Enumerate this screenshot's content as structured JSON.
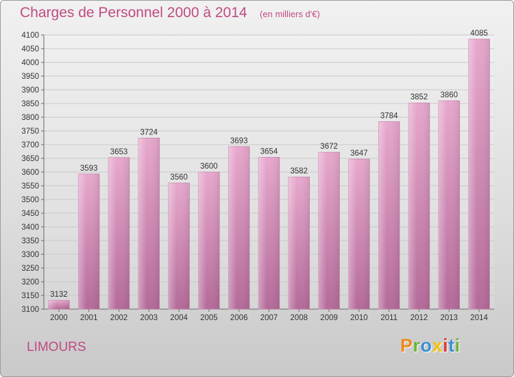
{
  "chart_data": {
    "type": "bar",
    "title": "Charges de Personnel 2000 à 2014",
    "subtitle": "(en milliers d'€)",
    "categories": [
      "2000",
      "2001",
      "2002",
      "2003",
      "2004",
      "2005",
      "2006",
      "2007",
      "2008",
      "2009",
      "2010",
      "2011",
      "2012",
      "2013",
      "2014"
    ],
    "values": [
      3132,
      3593,
      3653,
      3724,
      3560,
      3600,
      3693,
      3654,
      3582,
      3672,
      3647,
      3784,
      3852,
      3860,
      4085
    ],
    "ylim": [
      3100,
      4100
    ],
    "yticks": [
      3100,
      3150,
      3200,
      3250,
      3300,
      3350,
      3400,
      3450,
      3500,
      3550,
      3600,
      3650,
      3700,
      3750,
      3800,
      3850,
      3900,
      3950,
      4000,
      4050,
      4100
    ],
    "grid": true,
    "bar_color": "#dd94c1"
  },
  "footer": {
    "city": "LIMOURS",
    "brand": {
      "p": "P",
      "r": "r",
      "o": "o",
      "x": "x",
      "i1": "i",
      "t": "t",
      "i2": "i"
    }
  },
  "colors": {
    "accent": "#c04a82",
    "bar_light": "#e7a8cd",
    "bar_dark": "#b46a99"
  }
}
